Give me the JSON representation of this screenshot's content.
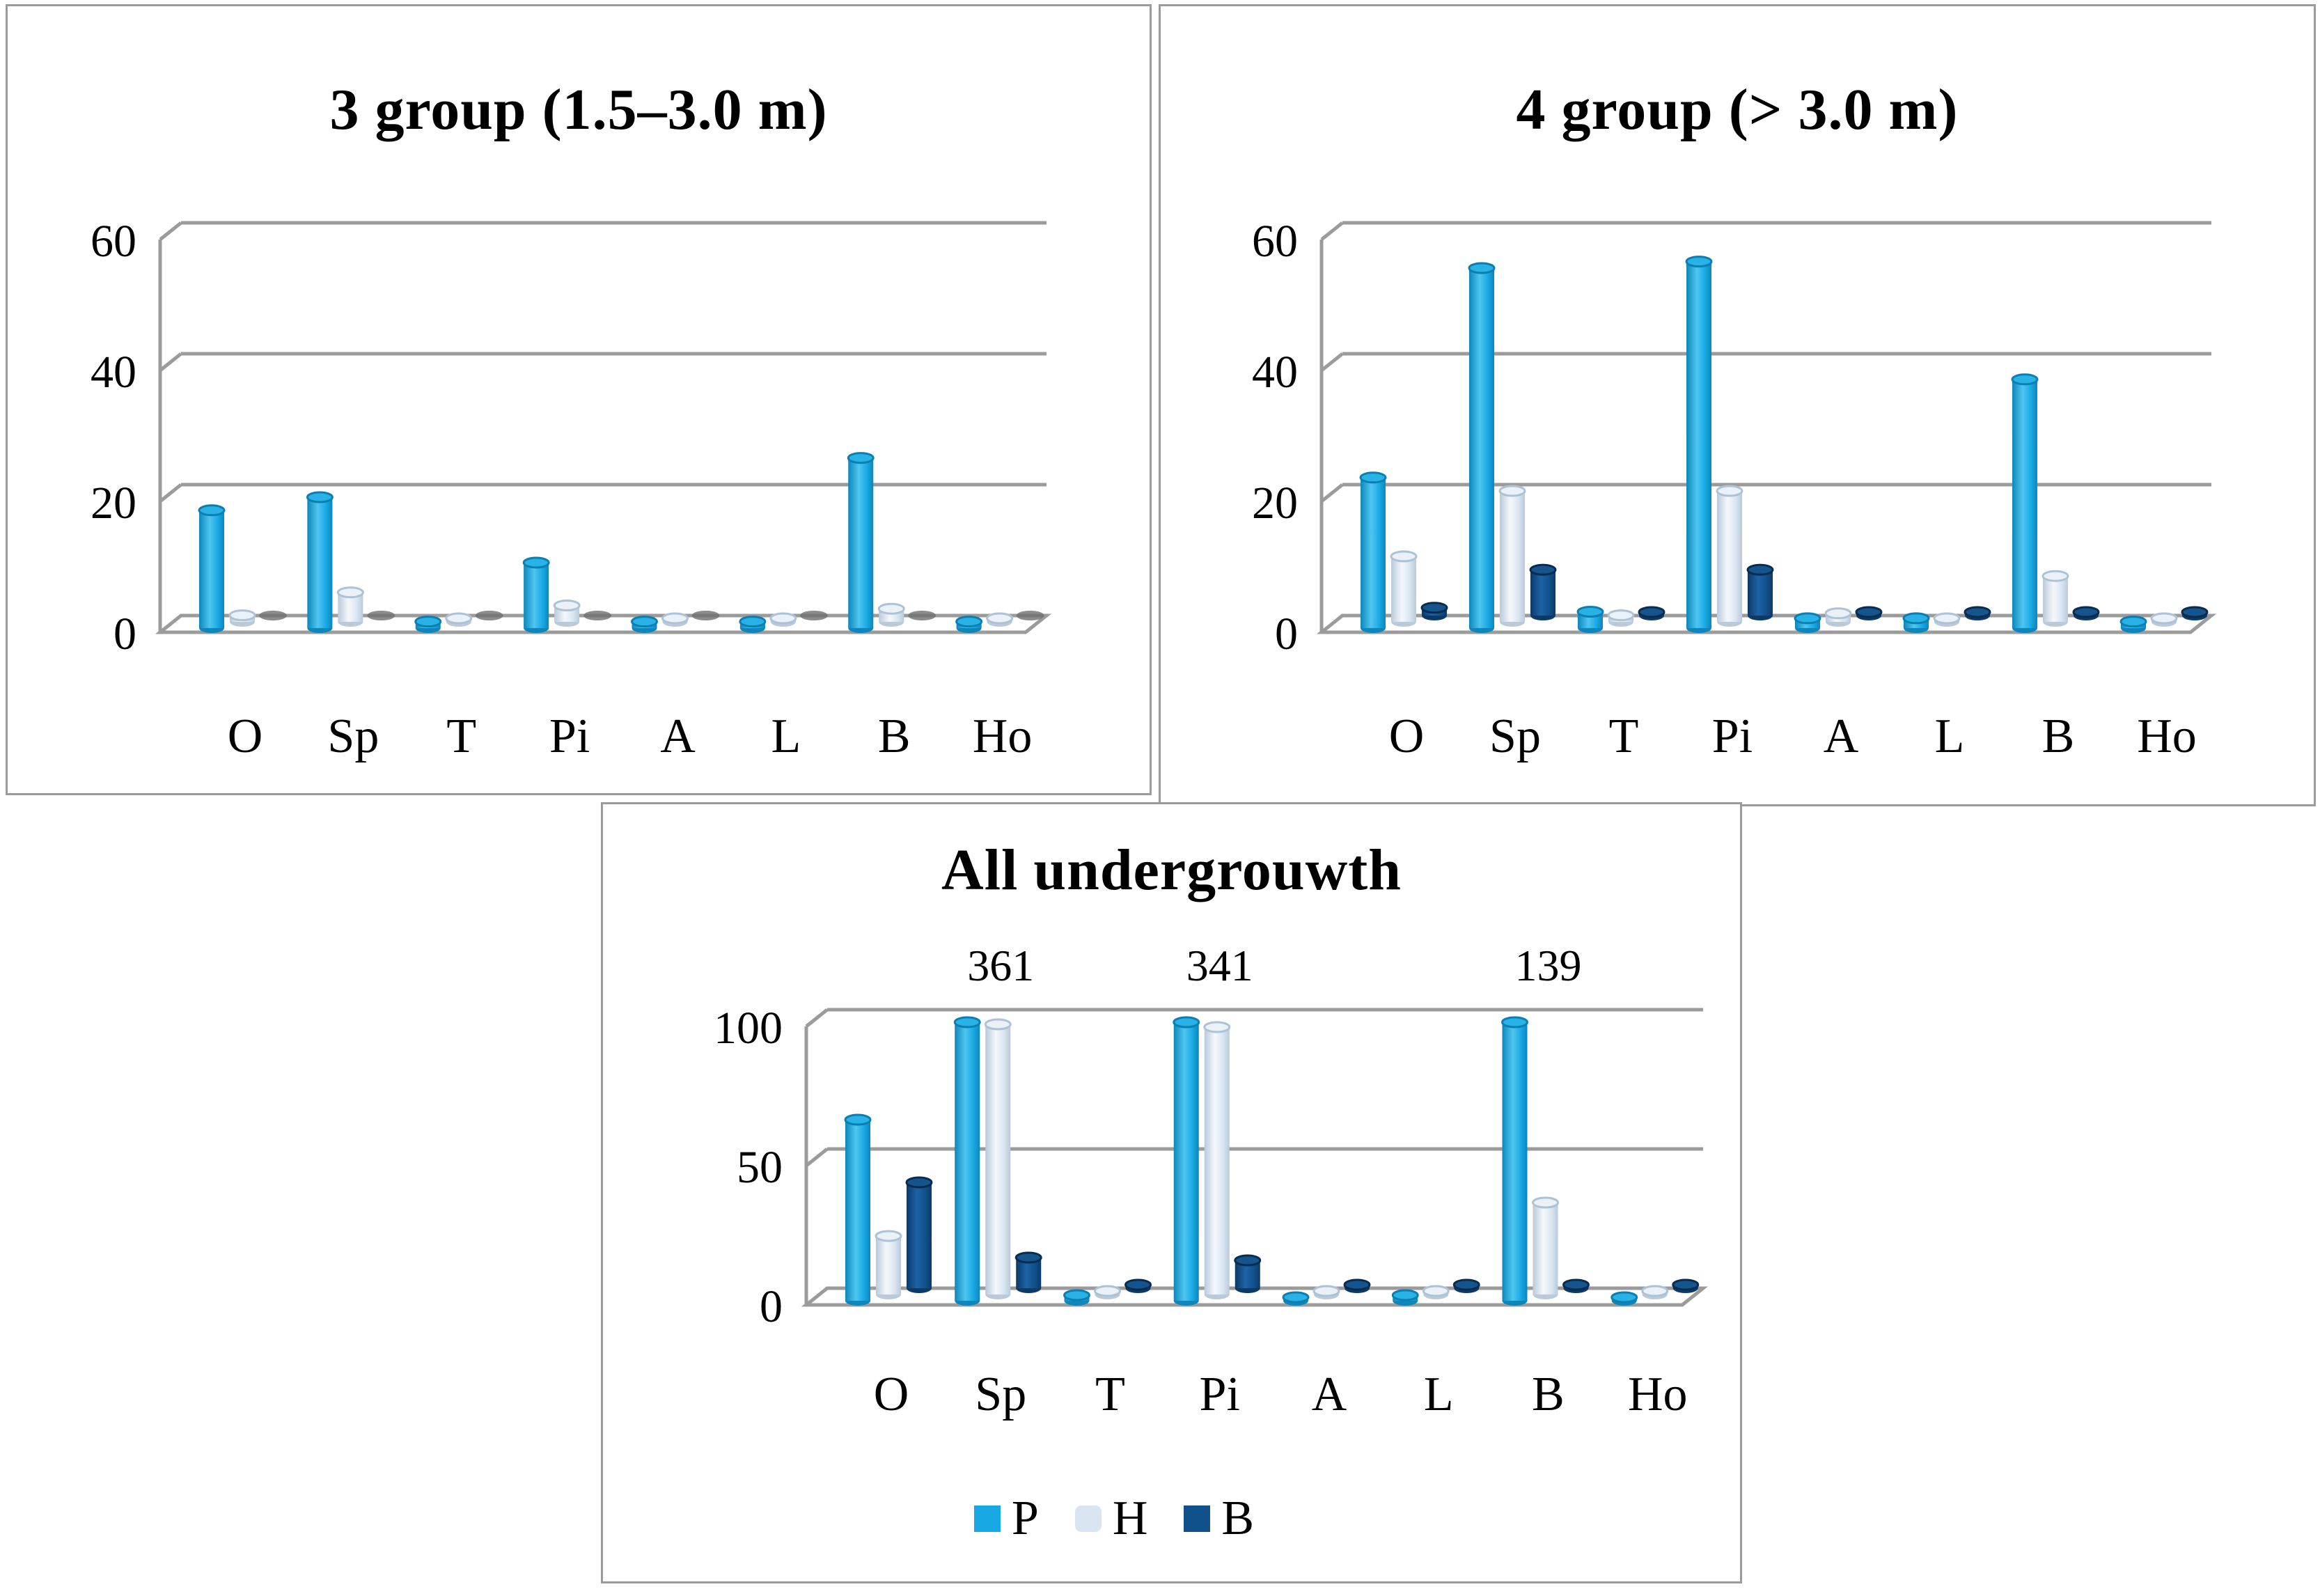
{
  "figure": {
    "description_note": "Three 3D cylinder bar charts",
    "background": "#FFFFFF"
  },
  "colors": {
    "p": "#18A9E4",
    "p_dark": "#0D86BB",
    "p_light": "#4FC6F0",
    "p_top": "#29B2E6",
    "p_top_stroke": "#0C7FB2",
    "h": "#D9E5F1",
    "h_dark": "#B9CADB",
    "h_light": "#F5F8FC",
    "h_top": "#EAF1F8",
    "h_top_stroke": "#AEC2D6",
    "b": "#11518B",
    "b_dark": "#0B3A68",
    "b_light": "#1D63A6",
    "b_top": "#16548E",
    "b_top_stroke": "#082C50",
    "grid": "#9B9B9B",
    "panel_border": "#9B9B9B",
    "zero_marker": "#6F6F6F",
    "text": "#000000"
  },
  "legend": {
    "items": [
      {
        "label": "P",
        "color": "#18A9E4"
      },
      {
        "label": "H",
        "color": "#D9E5F1"
      },
      {
        "label": "B",
        "color": "#11518B"
      }
    ]
  },
  "chart_data": [
    {
      "id": "g3",
      "type": "bar",
      "title": "3 group (1.5–3.0 m)",
      "categories": [
        "O",
        "Sp",
        "T",
        "Pi",
        "A",
        "L",
        "B",
        "Ho"
      ],
      "series": [
        {
          "name": "P",
          "values": [
            18,
            20,
            1,
            10,
            1,
            1,
            26,
            1
          ]
        },
        {
          "name": "H",
          "values": [
            1,
            4.5,
            0.4,
            2.5,
            0.5,
            0.5,
            2,
            0.4
          ]
        },
        {
          "name": "B",
          "values": [
            0,
            0,
            0,
            0,
            0,
            0,
            0,
            0
          ]
        }
      ],
      "yticks": [
        0,
        20,
        40,
        60
      ],
      "ylim": [
        0,
        60
      ],
      "grid": true,
      "legend_position": "none"
    },
    {
      "id": "g4",
      "type": "bar",
      "title": "4 group (> 3.0 m)",
      "categories": [
        "O",
        "Sp",
        "T",
        "Pi",
        "A",
        "L",
        "B",
        "Ho"
      ],
      "series": [
        {
          "name": "P",
          "values": [
            23,
            55,
            2.5,
            56,
            1.5,
            1.5,
            38,
            1
          ]
        },
        {
          "name": "H",
          "values": [
            10,
            20,
            1,
            20,
            1.3,
            0.5,
            7,
            0.4
          ]
        },
        {
          "name": "B",
          "values": [
            1.2,
            7,
            0.4,
            7,
            0.4,
            0.4,
            0.4,
            0.4
          ]
        }
      ],
      "yticks": [
        0,
        20,
        40,
        60
      ],
      "ylim": [
        0,
        60
      ],
      "grid": true,
      "legend_position": "none"
    },
    {
      "id": "all",
      "type": "bar",
      "title": "All undergrouwth",
      "categories": [
        "O",
        "Sp",
        "T",
        "Pi",
        "A",
        "L",
        "B",
        "Ho"
      ],
      "series": [
        {
          "name": "P",
          "values": [
            65,
            100,
            2,
            100,
            1,
            2,
            100,
            1
          ]
        },
        {
          "name": "H",
          "values": [
            21,
            97,
            1,
            96,
            1,
            0.5,
            33,
            0.5
          ]
        },
        {
          "name": "B",
          "values": [
            38,
            11,
            0.8,
            10,
            0.8,
            0.8,
            0.8,
            0.8
          ]
        }
      ],
      "yticks": [
        0,
        50,
        100
      ],
      "ylim": [
        0,
        100
      ],
      "bar_labels": [
        {
          "category": "Sp",
          "text": "361"
        },
        {
          "category": "Pi",
          "text": "341"
        },
        {
          "category": "B",
          "text": "139"
        }
      ],
      "grid": true,
      "legend_position": "bottom"
    }
  ]
}
